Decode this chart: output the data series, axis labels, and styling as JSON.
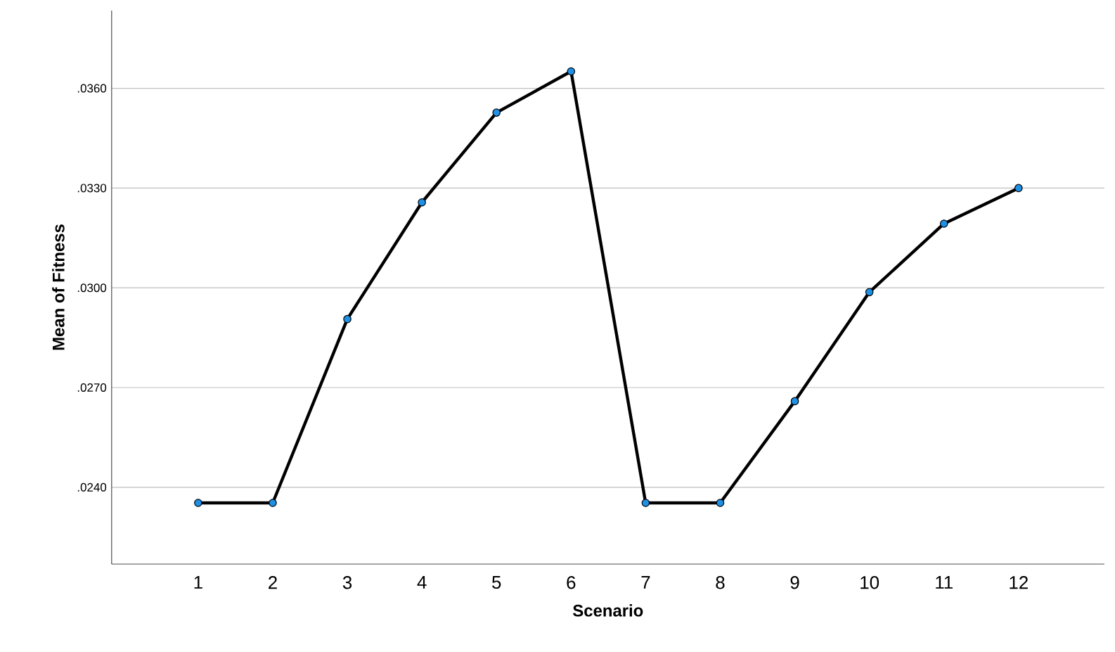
{
  "chart_data": {
    "type": "line",
    "xlabel": "Scenario",
    "ylabel": "Mean of Fitness",
    "categories": [
      "1",
      "2",
      "3",
      "4",
      "5",
      "6",
      "7",
      "8",
      "9",
      "10",
      "11",
      "12"
    ],
    "series": [
      {
        "color": "#000000",
        "values": [
          0.02353,
          0.02353,
          0.02906,
          0.03257,
          0.03527,
          0.03651,
          0.02353,
          0.02353,
          0.02659,
          0.02987,
          0.03193,
          0.033
        ]
      }
    ],
    "ylim": [
      0.02169,
      0.03834
    ],
    "yticks": [
      {
        "value": 0.024,
        "label": ".0240"
      },
      {
        "value": 0.027,
        "label": ".0270"
      },
      {
        "value": 0.03,
        "label": ".0300"
      },
      {
        "value": 0.033,
        "label": ".0330"
      },
      {
        "value": 0.036,
        "label": ".0360"
      }
    ],
    "grid": "y",
    "marker": "circle",
    "line_style": "solid"
  }
}
